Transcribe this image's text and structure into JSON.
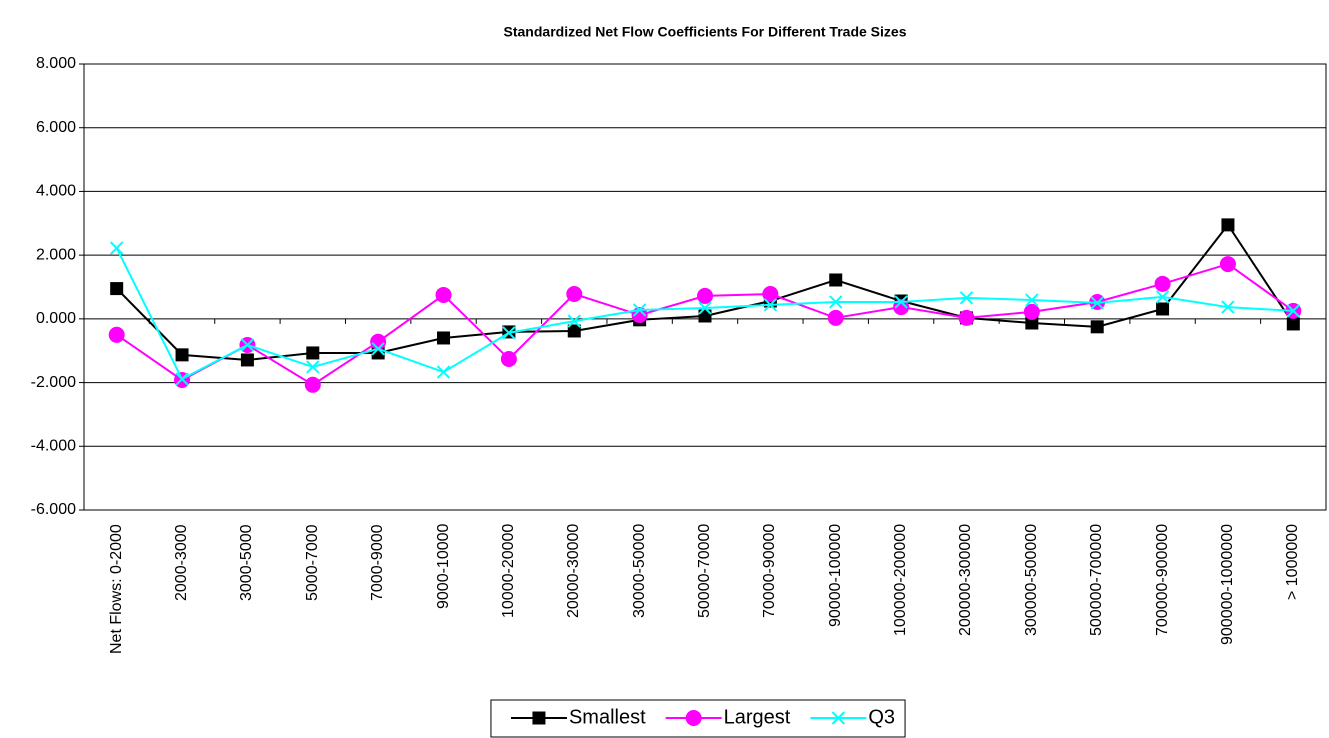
{
  "chart_data": {
    "type": "line",
    "title": "Standardized Net Flow Coefficients For Different Trade Sizes",
    "categories": [
      "Net Flows:  0-2000",
      "2000-3000",
      "3000-5000",
      "5000-7000",
      "7000-9000",
      "9000-10000",
      "10000-20000",
      "20000-30000",
      "30000-50000",
      "50000-70000",
      "70000-90000",
      "90000-100000",
      "100000-200000",
      "200000-300000",
      "300000-500000",
      "500000-700000",
      "700000-900000",
      "900000-1000000",
      "> 1000000"
    ],
    "series": [
      {
        "name": "Smallest",
        "color": "#000000",
        "marker": "square",
        "values": [
          0.95,
          -1.13,
          -1.29,
          -1.07,
          -1.07,
          -0.6,
          -0.41,
          -0.38,
          -0.03,
          0.09,
          0.56,
          1.22,
          0.56,
          0.03,
          -0.13,
          -0.25,
          0.31,
          2.95,
          -0.16
        ]
      },
      {
        "name": "Largest",
        "color": "#ff00ff",
        "marker": "circle",
        "values": [
          -0.5,
          -1.92,
          -0.82,
          -2.07,
          -0.72,
          0.75,
          -1.26,
          0.78,
          0.12,
          0.72,
          0.78,
          0.03,
          0.37,
          0.03,
          0.22,
          0.53,
          1.1,
          1.72,
          0.25
        ]
      },
      {
        "name": "Q3",
        "color": "#00ffff",
        "marker": "x",
        "values": [
          2.22,
          -1.89,
          -0.82,
          -1.51,
          -0.94,
          -1.67,
          -0.44,
          -0.07,
          0.28,
          0.34,
          0.44,
          0.53,
          0.53,
          0.66,
          0.59,
          0.5,
          0.69,
          0.37,
          0.25
        ]
      }
    ],
    "ylim": [
      -6,
      8
    ],
    "yticks": [
      {
        "value": -6,
        "label": "-6.000"
      },
      {
        "value": -4,
        "label": "-4.000"
      },
      {
        "value": -2,
        "label": "-2.000"
      },
      {
        "value": 0,
        "label": "0.000"
      },
      {
        "value": 2,
        "label": "2.000"
      },
      {
        "value": 4,
        "label": "4.000"
      },
      {
        "value": 6,
        "label": "6.000"
      },
      {
        "value": 8,
        "label": "8.000"
      }
    ],
    "grid": true,
    "legend": "bottom"
  }
}
